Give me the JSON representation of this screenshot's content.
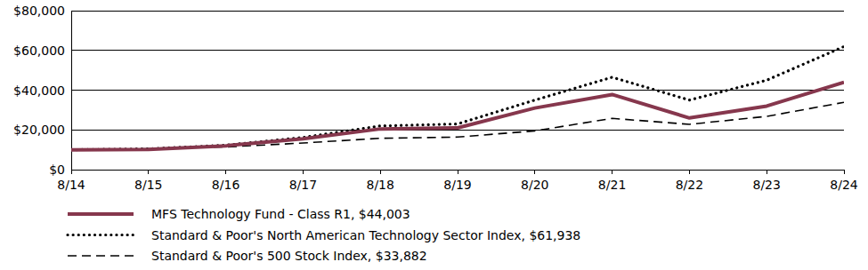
{
  "chart_data": {
    "type": "line",
    "categories": [
      "8/14",
      "8/15",
      "8/16",
      "8/17",
      "8/18",
      "8/19",
      "8/20",
      "8/21",
      "8/22",
      "8/23",
      "8/24"
    ],
    "series": [
      {
        "name": "MFS Technology Fund - Class R1, $44,003",
        "color": "#86374d",
        "line_style": "solid",
        "values": [
          10000,
          10200,
          12000,
          15500,
          20500,
          21000,
          31000,
          37800,
          26000,
          32000,
          44003
        ]
      },
      {
        "name": "Standard & Poor's North American Technology Sector Index, $61,938",
        "color": "#000000",
        "line_style": "dotted",
        "values": [
          10000,
          10500,
          12300,
          16200,
          22000,
          23000,
          35000,
          46500,
          35000,
          45000,
          61938
        ]
      },
      {
        "name": "Standard & Poor's 500 Stock Index, $33,882",
        "color": "#000000",
        "line_style": "dashed",
        "values": [
          10000,
          10500,
          11400,
          13400,
          15800,
          16400,
          19500,
          25800,
          22800,
          26800,
          33882
        ]
      }
    ],
    "ylim": [
      0,
      80000
    ],
    "yticks": [
      {
        "value": 0,
        "label": "$0"
      },
      {
        "value": 20000,
        "label": "$20,000"
      },
      {
        "value": 40000,
        "label": "$40,000"
      },
      {
        "value": 60000,
        "label": "$60,000"
      },
      {
        "value": 80000,
        "label": "$80,000"
      }
    ],
    "grid": true,
    "legend": "bottom"
  }
}
